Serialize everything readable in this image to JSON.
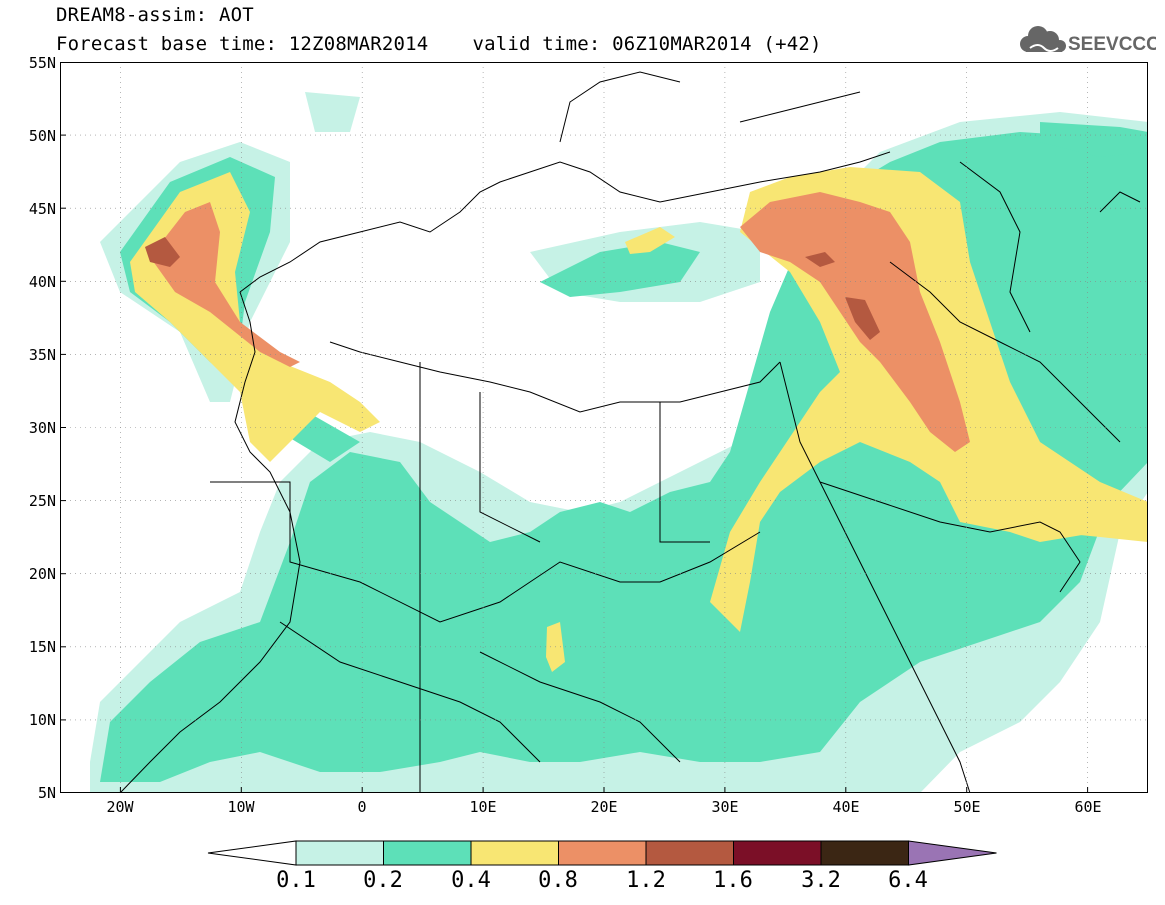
{
  "header": {
    "title": "DREAM8-assim: AOT",
    "base_time_label": "Forecast base time: 12Z08MAR2014",
    "valid_time_label": "valid time: 06Z10MAR2014 (+42)"
  },
  "logo": {
    "text": "SEEVCCC",
    "icon": "cloud-icon"
  },
  "map": {
    "lon_range": [
      -25,
      65
    ],
    "lat_range": [
      5,
      55
    ],
    "lat_labels": [
      "55N",
      "50N",
      "45N",
      "40N",
      "35N",
      "30N",
      "25N",
      "20N",
      "15N",
      "10N",
      "5N"
    ],
    "lon_labels": [
      "20W",
      "10W",
      "0",
      "10E",
      "20E",
      "30E",
      "40E",
      "50E",
      "60E"
    ]
  },
  "legend": {
    "labels": [
      "0.1",
      "0.2",
      "0.4",
      "0.8",
      "1.2",
      "1.6",
      "3.2",
      "6.4"
    ],
    "colors": [
      "#ffffff",
      "#c6f2e6",
      "#5de0b8",
      "#f8e673",
      "#ec9066",
      "#b45940",
      "#7b0f27",
      "#3b2614",
      "#9a74b4"
    ]
  }
}
